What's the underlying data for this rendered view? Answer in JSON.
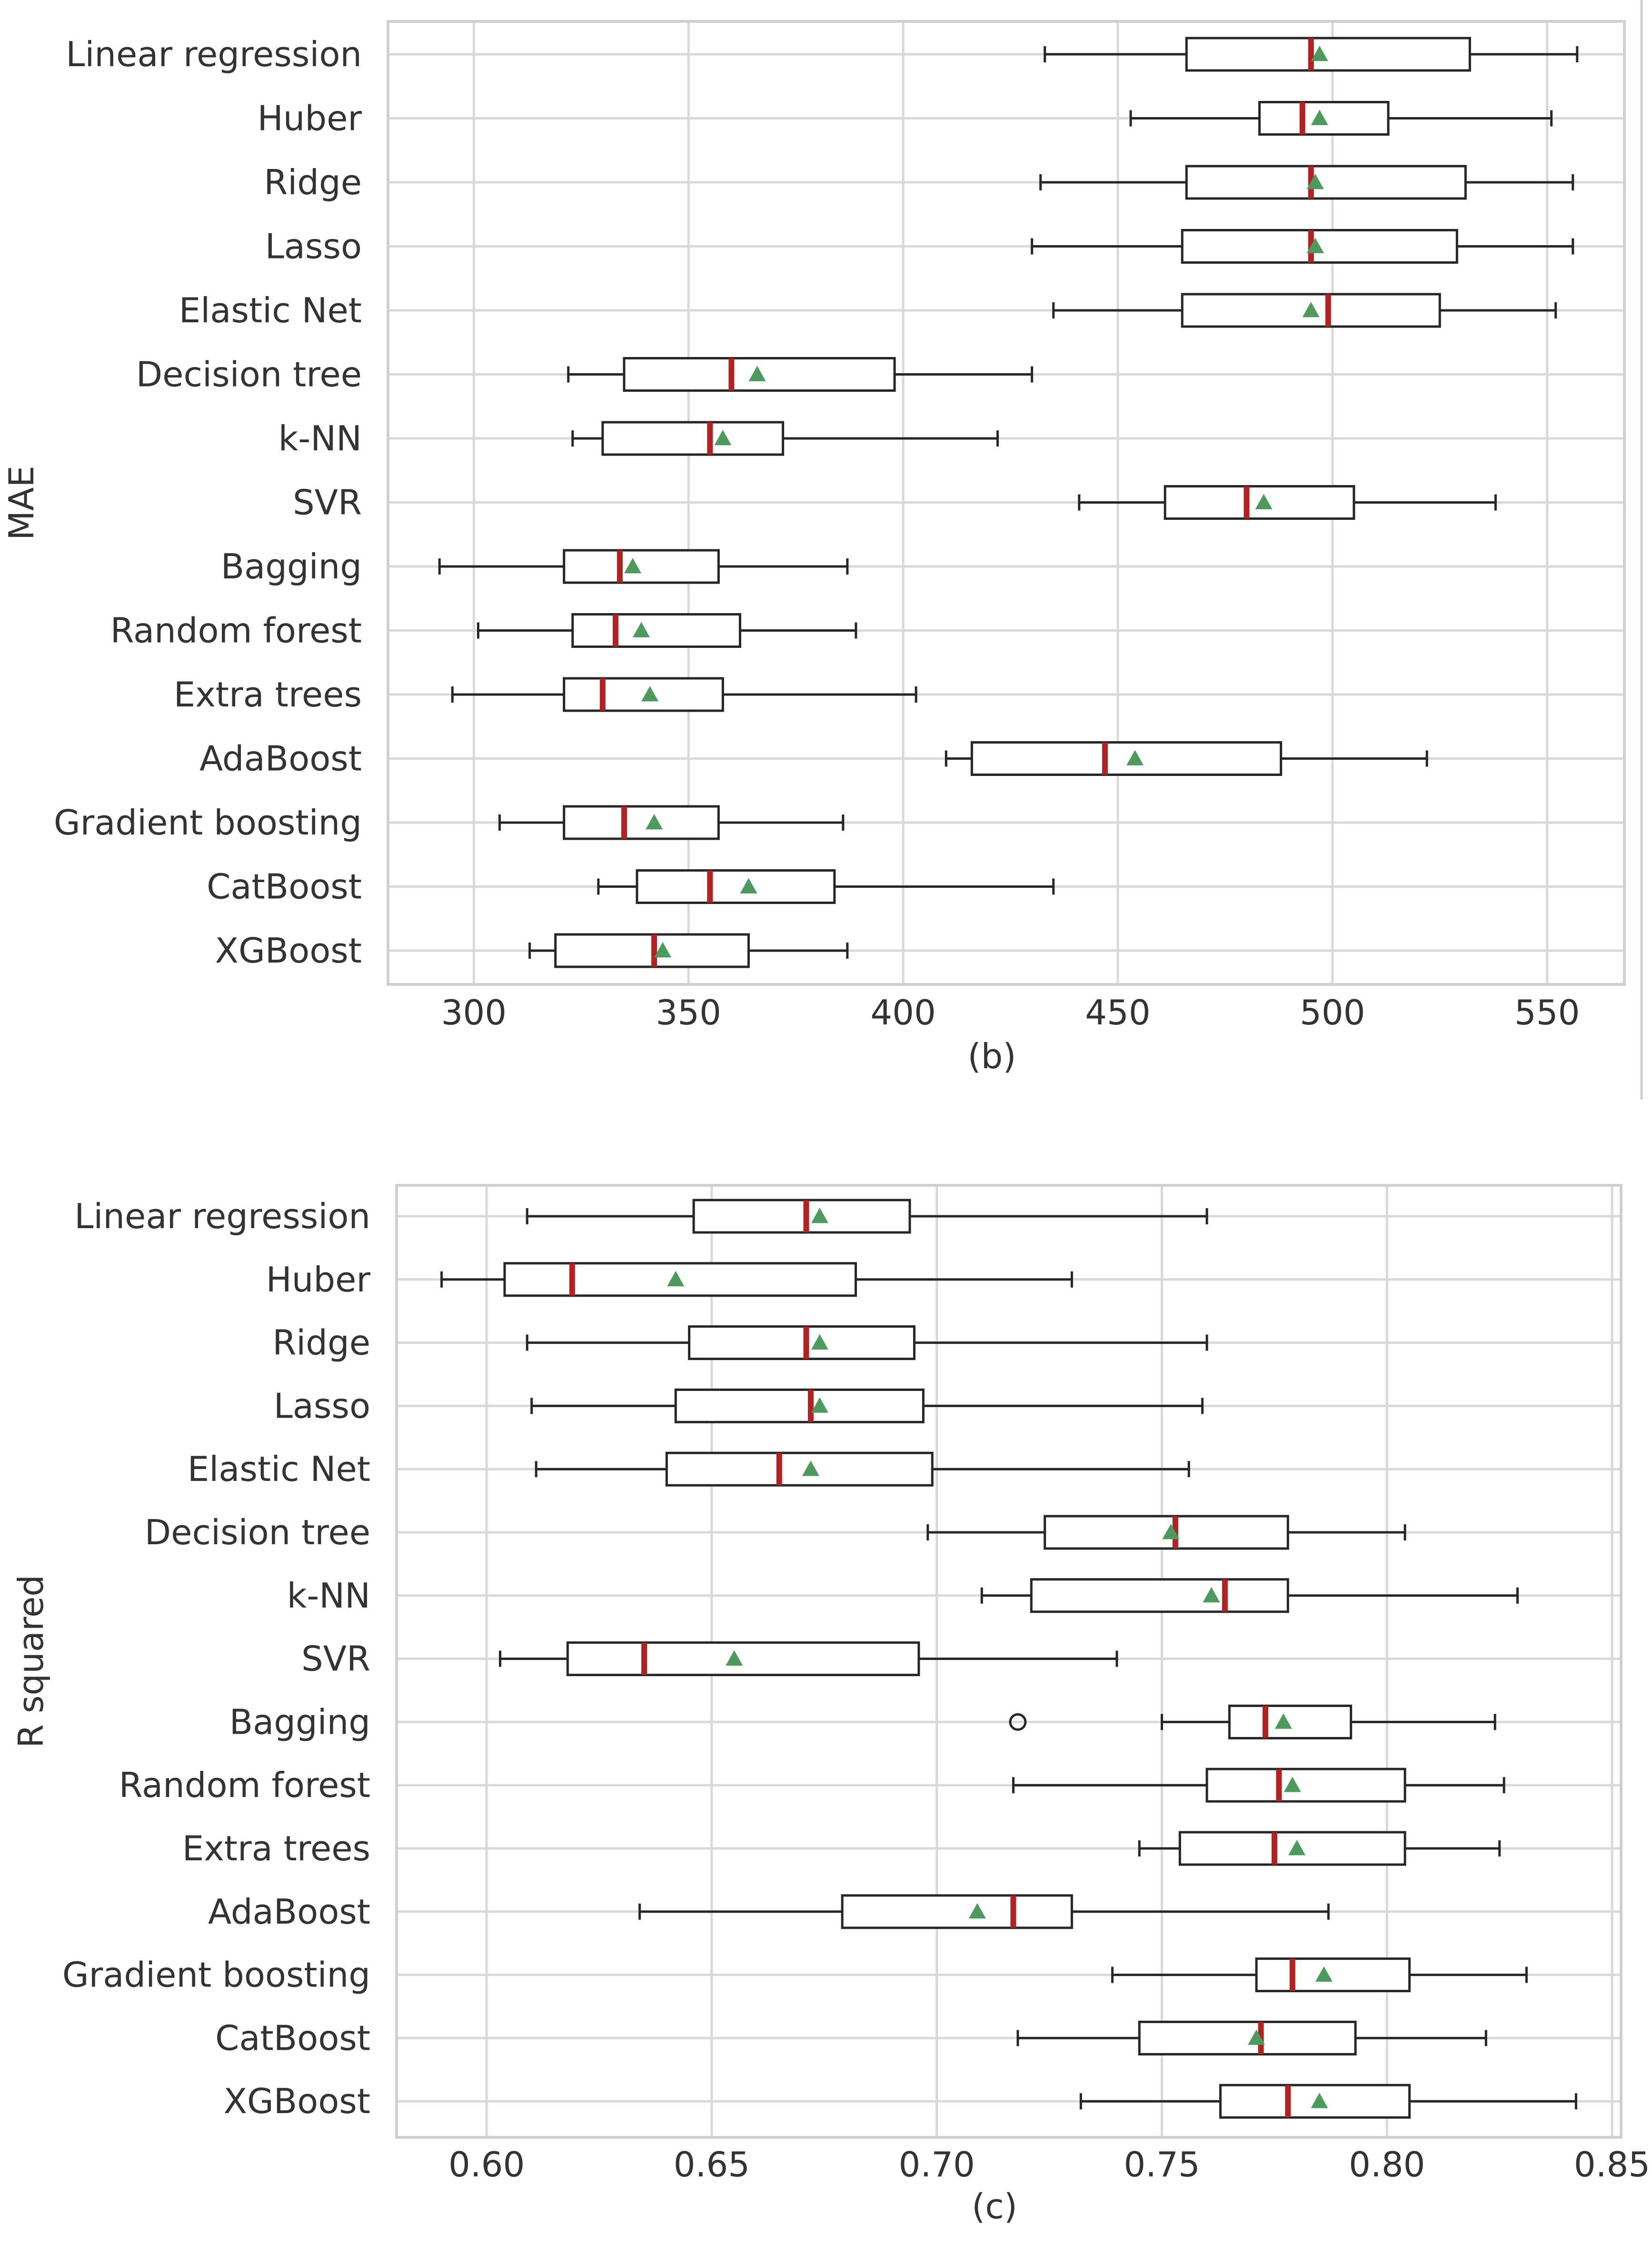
{
  "chart_data": [
    {
      "type": "box",
      "ylabel": "MAE",
      "caption": "(b)",
      "xlim": [
        280,
        568
      ],
      "xticks": [
        300,
        350,
        400,
        450,
        500,
        550
      ],
      "categories": [
        "Linear regression",
        "Huber",
        "Ridge",
        "Lasso",
        "Elastic Net",
        "Decision tree",
        "k-NN",
        "SVR",
        "Bagging",
        "Random forest",
        "Extra trees",
        "AdaBoost",
        "Gradient boosting",
        "CatBoost",
        "XGBoost"
      ],
      "boxes": [
        {
          "whislo": 433,
          "q1": 466,
          "med": 495,
          "mean": 497,
          "q3": 532,
          "whishi": 557,
          "fliers": []
        },
        {
          "whislo": 453,
          "q1": 483,
          "med": 493,
          "mean": 497,
          "q3": 513,
          "whishi": 551,
          "fliers": []
        },
        {
          "whislo": 432,
          "q1": 466,
          "med": 495,
          "mean": 496,
          "q3": 531,
          "whishi": 556,
          "fliers": []
        },
        {
          "whislo": 430,
          "q1": 465,
          "med": 495,
          "mean": 496,
          "q3": 529,
          "whishi": 556,
          "fliers": []
        },
        {
          "whislo": 435,
          "q1": 465,
          "med": 499,
          "mean": 495,
          "q3": 525,
          "whishi": 552,
          "fliers": []
        },
        {
          "whislo": 322,
          "q1": 335,
          "med": 360,
          "mean": 366,
          "q3": 398,
          "whishi": 430,
          "fliers": []
        },
        {
          "whislo": 323,
          "q1": 330,
          "med": 355,
          "mean": 358,
          "q3": 372,
          "whishi": 422,
          "fliers": []
        },
        {
          "whislo": 441,
          "q1": 461,
          "med": 480,
          "mean": 484,
          "q3": 505,
          "whishi": 538,
          "fliers": []
        },
        {
          "whislo": 292,
          "q1": 321,
          "med": 334,
          "mean": 337,
          "q3": 357,
          "whishi": 387,
          "fliers": []
        },
        {
          "whislo": 301,
          "q1": 323,
          "med": 333,
          "mean": 339,
          "q3": 362,
          "whishi": 389,
          "fliers": []
        },
        {
          "whislo": 295,
          "q1": 321,
          "med": 330,
          "mean": 341,
          "q3": 358,
          "whishi": 403,
          "fliers": []
        },
        {
          "whislo": 410,
          "q1": 416,
          "med": 447,
          "mean": 454,
          "q3": 488,
          "whishi": 522,
          "fliers": []
        },
        {
          "whislo": 306,
          "q1": 321,
          "med": 335,
          "mean": 342,
          "q3": 357,
          "whishi": 386,
          "fliers": []
        },
        {
          "whislo": 329,
          "q1": 338,
          "med": 355,
          "mean": 364,
          "q3": 384,
          "whishi": 435,
          "fliers": []
        },
        {
          "whislo": 313,
          "q1": 319,
          "med": 342,
          "mean": 344,
          "q3": 364,
          "whishi": 387,
          "fliers": []
        }
      ]
    },
    {
      "type": "box",
      "ylabel": "R squared",
      "caption": "(c)",
      "xlim": [
        0.58,
        0.852
      ],
      "xticks": [
        "0.60",
        "0.65",
        "0.70",
        "0.75",
        "0.80",
        "0.85"
      ],
      "categories": [
        "Linear regression",
        "Huber",
        "Ridge",
        "Lasso",
        "Elastic Net",
        "Decision tree",
        "k-NN",
        "SVR",
        "Bagging",
        "Random forest",
        "Extra trees",
        "AdaBoost",
        "Gradient boosting",
        "CatBoost",
        "XGBoost"
      ],
      "boxes": [
        {
          "whislo": 0.609,
          "q1": 0.646,
          "med": 0.671,
          "mean": 0.674,
          "q3": 0.694,
          "whishi": 0.76,
          "fliers": []
        },
        {
          "whislo": 0.59,
          "q1": 0.604,
          "med": 0.619,
          "mean": 0.642,
          "q3": 0.682,
          "whishi": 0.73,
          "fliers": []
        },
        {
          "whislo": 0.609,
          "q1": 0.645,
          "med": 0.671,
          "mean": 0.674,
          "q3": 0.695,
          "whishi": 0.76,
          "fliers": []
        },
        {
          "whislo": 0.61,
          "q1": 0.642,
          "med": 0.672,
          "mean": 0.674,
          "q3": 0.697,
          "whishi": 0.759,
          "fliers": []
        },
        {
          "whislo": 0.611,
          "q1": 0.64,
          "med": 0.665,
          "mean": 0.672,
          "q3": 0.699,
          "whishi": 0.756,
          "fliers": []
        },
        {
          "whislo": 0.698,
          "q1": 0.724,
          "med": 0.753,
          "mean": 0.752,
          "q3": 0.778,
          "whishi": 0.804,
          "fliers": []
        },
        {
          "whislo": 0.71,
          "q1": 0.721,
          "med": 0.764,
          "mean": 0.761,
          "q3": 0.778,
          "whishi": 0.829,
          "fliers": []
        },
        {
          "whislo": 0.603,
          "q1": 0.618,
          "med": 0.635,
          "mean": 0.655,
          "q3": 0.696,
          "whishi": 0.74,
          "fliers": []
        },
        {
          "whislo": 0.75,
          "q1": 0.765,
          "med": 0.773,
          "mean": 0.777,
          "q3": 0.792,
          "whishi": 0.824,
          "fliers": [
            0.718
          ]
        },
        {
          "whislo": 0.717,
          "q1": 0.76,
          "med": 0.776,
          "mean": 0.779,
          "q3": 0.804,
          "whishi": 0.826,
          "fliers": []
        },
        {
          "whislo": 0.745,
          "q1": 0.754,
          "med": 0.775,
          "mean": 0.78,
          "q3": 0.804,
          "whishi": 0.825,
          "fliers": []
        },
        {
          "whislo": 0.634,
          "q1": 0.679,
          "med": 0.717,
          "mean": 0.709,
          "q3": 0.73,
          "whishi": 0.787,
          "fliers": []
        },
        {
          "whislo": 0.739,
          "q1": 0.771,
          "med": 0.779,
          "mean": 0.786,
          "q3": 0.805,
          "whishi": 0.831,
          "fliers": []
        },
        {
          "whislo": 0.718,
          "q1": 0.745,
          "med": 0.772,
          "mean": 0.771,
          "q3": 0.793,
          "whishi": 0.822,
          "fliers": []
        },
        {
          "whislo": 0.732,
          "q1": 0.763,
          "med": 0.778,
          "mean": 0.785,
          "q3": 0.805,
          "whishi": 0.842,
          "fliers": []
        }
      ]
    }
  ]
}
